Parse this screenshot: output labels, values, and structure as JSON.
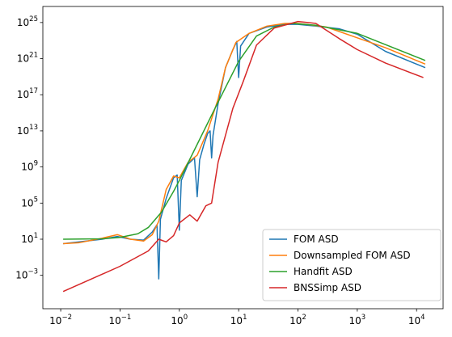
{
  "chart_data": {
    "type": "line",
    "xscale": "log",
    "yscale": "log",
    "xlim": [
      0.005,
      28000
    ],
    "ylim": [
      2e-07,
      6e+26
    ],
    "xticks": [
      {
        "value": 0.01,
        "label": "10^−2"
      },
      {
        "value": 0.1,
        "label": "10^−1"
      },
      {
        "value": 1,
        "label": "10^0"
      },
      {
        "value": 10,
        "label": "10^1"
      },
      {
        "value": 100,
        "label": "10^2"
      },
      {
        "value": 1000,
        "label": "10^3"
      },
      {
        "value": 10000,
        "label": "10^4"
      }
    ],
    "yticks": [
      {
        "value": 0.001,
        "label": "10^−3"
      },
      {
        "value": 10,
        "label": "10^1"
      },
      {
        "value": 100000,
        "label": "10^5"
      },
      {
        "value": 1000000000.0,
        "label": "10^9"
      },
      {
        "value": 10000000000000.0,
        "label": "10^13"
      },
      {
        "value": 1e+17,
        "label": "10^17"
      },
      {
        "value": 1e+21,
        "label": "10^21"
      },
      {
        "value": 1e+25,
        "label": "10^25"
      }
    ],
    "legend": "lower right",
    "series": [
      {
        "name": "FOM ASD",
        "color": "#1f77b4",
        "x": [
          0.011,
          0.02,
          0.05,
          0.09,
          0.15,
          0.25,
          0.35,
          0.42,
          0.45,
          0.48,
          0.6,
          0.8,
          0.92,
          1.0,
          1.08,
          1.4,
          1.8,
          2.0,
          2.2,
          2.6,
          3.0,
          3.3,
          3.5,
          3.7,
          4.5,
          6,
          8,
          9.3,
          10,
          10.8,
          15,
          30,
          60,
          100,
          200,
          500,
          1000,
          3000,
          14000
        ],
        "values": [
          3.2,
          5,
          10,
          20,
          10,
          8,
          63,
          400,
          0.0004,
          1600,
          320000,
          63000000,
          130000000,
          100,
          32000000,
          2000000000.0,
          10000000000.0,
          500000,
          6300000000.0,
          320000000000.0,
          5000000000000.0,
          10000000000000.0,
          10000000000.0,
          3200000000000.0,
          1e+16,
          1e+20,
          1e+22,
          8e+22,
          8e+18,
          2.5e+22,
          6.3e+23,
          3.2e+24,
          6.3e+24,
          6.3e+24,
          4e+24,
          2e+24,
          5e+23,
          6.3e+21,
          1e+20
        ]
      },
      {
        "name": "Downsampled FOM ASD",
        "color": "#ff7f0e",
        "x": [
          0.011,
          0.02,
          0.05,
          0.09,
          0.15,
          0.25,
          0.35,
          0.45,
          0.6,
          0.8,
          1.0,
          1.4,
          2,
          3,
          4.5,
          6,
          9,
          15,
          30,
          60,
          100,
          300,
          1000,
          3000,
          14000
        ],
        "values": [
          3.2,
          4,
          13,
          32,
          10,
          6.3,
          32,
          1000,
          3200000,
          100000000.0,
          63000000,
          3200000000.0,
          20000000000.0,
          10000000000000.0,
          3.2e+16,
          1e+20,
          6.3e+22,
          6.3e+23,
          4e+24,
          8e+24,
          8e+24,
          3.2e+24,
          2e+23,
          1.6e+22,
          2.5e+20
        ]
      },
      {
        "name": "Handfit ASD",
        "color": "#2ca02c",
        "x": [
          0.011,
          0.05,
          0.1,
          0.2,
          0.3,
          0.5,
          0.8,
          1.0,
          2,
          4,
          10,
          20,
          40,
          80,
          200,
          1000,
          14000
        ],
        "values": [
          10,
          11,
          16,
          40,
          200,
          10000,
          2000000,
          32000000,
          320000000000.0,
          3200000000000000.0,
          5e+20,
          3.2e+23,
          3.2e+24,
          8e+24,
          5e+24,
          6.3e+23,
          6.3e+20
        ]
      },
      {
        "name": "BNSSimp ASD",
        "color": "#d62728",
        "x": [
          0.011,
          0.1,
          0.3,
          0.45,
          0.6,
          0.8,
          1.0,
          1.5,
          2,
          2.8,
          3.5,
          4.5,
          8,
          12,
          20,
          40,
          100,
          200,
          500,
          1000,
          3000,
          13000
        ],
        "values": [
          1.6e-05,
          0.01,
          0.5,
          10,
          5,
          25,
          630,
          5000,
          1000,
          50000,
          100000,
          3200000000.0,
          3200000000000000.0,
          3.2e+18,
          3.2e+22,
          2.5e+24,
          1.3e+25,
          8e+24,
          1.6e+23,
          1e+22,
          3.2e+20,
          8e+18
        ]
      }
    ]
  }
}
